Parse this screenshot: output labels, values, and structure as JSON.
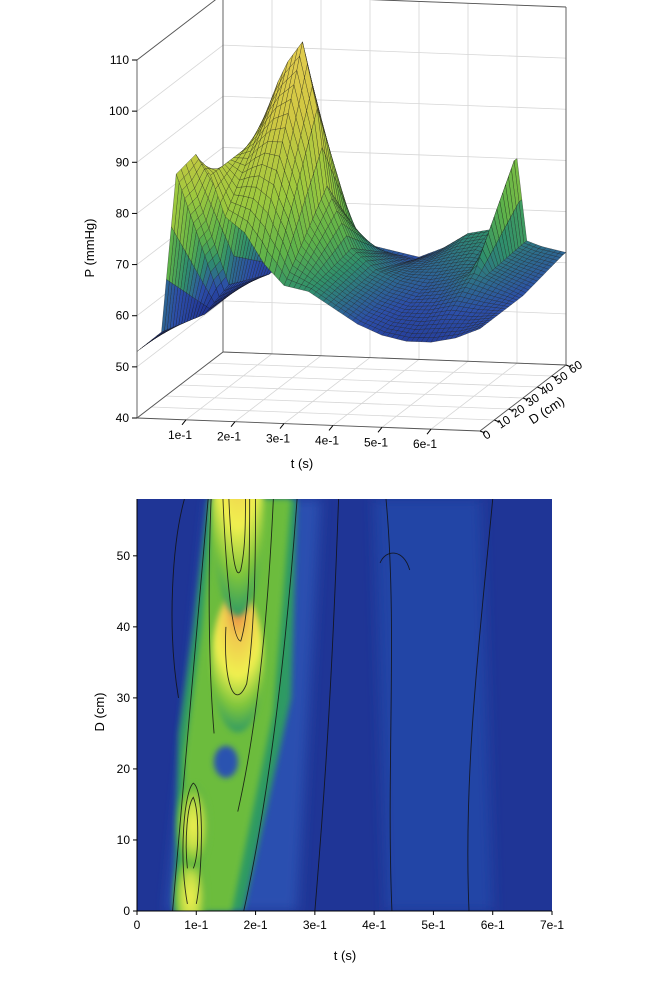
{
  "chart_data": [
    {
      "type": "surface",
      "title": "",
      "xlabel": "t (s)",
      "ylabel": "D (cm)",
      "zlabel": "P (mmHg)",
      "x_ticks": [
        "1e-1",
        "2e-1",
        "3e-1",
        "4e-1",
        "5e-1",
        "6e-1"
      ],
      "y_ticks": [
        "0",
        "10",
        "20",
        "30",
        "40",
        "50",
        "60"
      ],
      "z_ticks": [
        "40",
        "50",
        "60",
        "70",
        "80",
        "90",
        "100",
        "110"
      ],
      "xlim": [
        0.0,
        0.7
      ],
      "ylim": [
        0,
        60
      ],
      "zlim": [
        40,
        110
      ],
      "grid": true,
      "colorscale": [
        "#1c2a8c",
        "#2d55b0",
        "#2f9a64",
        "#7cc43c",
        "#c8c83c",
        "#e6cc50"
      ],
      "profiles": [
        {
          "D": 0,
          "t": [
            0.0,
            0.05,
            0.08,
            0.1,
            0.12,
            0.15,
            0.18,
            0.22,
            0.26,
            0.3,
            0.35,
            0.4,
            0.45,
            0.5,
            0.55,
            0.6,
            0.65,
            0.7
          ],
          "P": [
            53,
            57,
            88,
            90,
            92,
            88,
            80,
            77,
            71,
            67,
            66,
            63,
            60,
            58,
            57,
            57,
            58,
            60
          ]
        },
        {
          "D": 30,
          "t": [
            0.0,
            0.05,
            0.1,
            0.15,
            0.18,
            0.2,
            0.22,
            0.25,
            0.28,
            0.3,
            0.35,
            0.4,
            0.45,
            0.5,
            0.55,
            0.6,
            0.65,
            0.7
          ],
          "P": [
            53,
            54,
            60,
            88,
            95,
            100,
            104,
            108,
            95,
            80,
            68,
            64,
            62,
            61,
            62,
            64,
            62,
            60
          ]
        },
        {
          "D": 58,
          "t": [
            0.0,
            0.05,
            0.1,
            0.15,
            0.18,
            0.2,
            0.22,
            0.25,
            0.28,
            0.3,
            0.35,
            0.4,
            0.45,
            0.5,
            0.55,
            0.58,
            0.6,
            0.62,
            0.65,
            0.7
          ],
          "P": [
            54,
            54,
            56,
            66,
            75,
            80,
            75,
            68,
            63,
            62,
            61,
            60,
            62,
            65,
            66,
            64,
            80,
            64,
            63,
            62
          ]
        }
      ]
    },
    {
      "type": "heatmap",
      "title": "",
      "xlabel": "t (s)",
      "ylabel": "D (cm)",
      "x_ticks": [
        "0",
        "1e-1",
        "2e-1",
        "3e-1",
        "4e-1",
        "5e-1",
        "6e-1",
        "7e-1"
      ],
      "y_ticks": [
        "0",
        "10",
        "20",
        "30",
        "40",
        "50"
      ],
      "xlim": [
        0.0,
        0.7
      ],
      "ylim": [
        0,
        58
      ],
      "colorscale": [
        "#1c2a8c",
        "#2d55b0",
        "#2f9a64",
        "#7cc43c",
        "#f0f050",
        "#f0c850",
        "#e87a40"
      ],
      "peaks": [
        {
          "D": 2,
          "t": 0.09,
          "P": 92
        },
        {
          "D": 12,
          "t": 0.095,
          "P": 90
        },
        {
          "D": 35,
          "t": 0.17,
          "P": 98
        },
        {
          "D": 57,
          "t": 0.17,
          "P": 110
        }
      ],
      "contour_levels": [
        60,
        65,
        70,
        75,
        80,
        85,
        90,
        95,
        100,
        105
      ]
    }
  ]
}
